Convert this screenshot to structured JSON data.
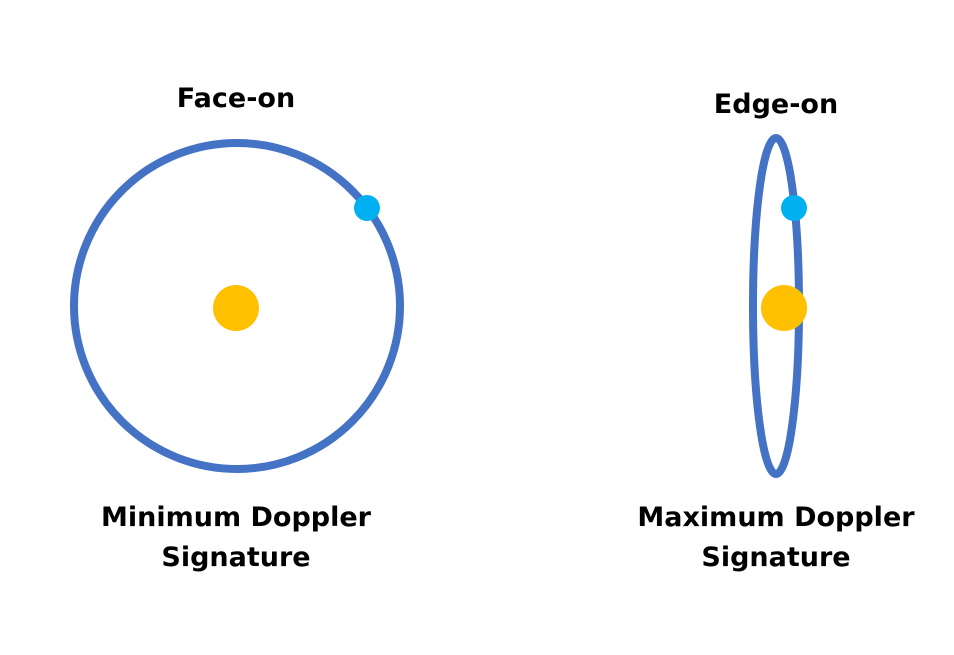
{
  "diagram": {
    "colors": {
      "orbit": "#4472C4",
      "star": "#FFC000",
      "planet": "#00B0F0",
      "text": "#000000",
      "background": "#FFFFFF"
    },
    "face_on": {
      "title": "Face-on",
      "caption_line1": "Minimum Doppler",
      "caption_line2": "Signature"
    },
    "edge_on": {
      "title": "Edge-on",
      "caption_line1": "Maximum Doppler",
      "caption_line2": "Signature"
    }
  }
}
